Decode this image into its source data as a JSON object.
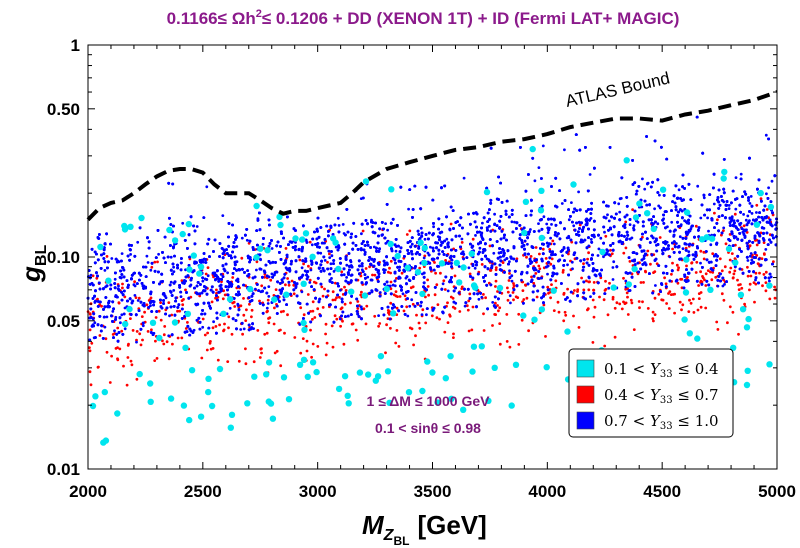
{
  "chart_data": {
    "type": "scatter",
    "title": "0.1166≤ Ωh²≤ 0.1206 + DD (XENON 1T) + ID (Fermi LAT+ MAGIC)",
    "title_parts": {
      "pre": "0.1166≤ Ωh",
      "sup": "2",
      "post": "≤ 0.1206 + DD (XENON 1T) + ID (Fermi LAT+ MAGIC)"
    },
    "xlabel": {
      "main": "M",
      "sub": "Z",
      "subsub": "BL",
      "unit": "[GeV]"
    },
    "ylabel": {
      "main": "g",
      "sub": "BL"
    },
    "xlim": [
      2000,
      5000
    ],
    "ylim": [
      0.01,
      1
    ],
    "yscale": "log",
    "x_ticks": [
      2000,
      2500,
      3000,
      3500,
      4000,
      4500,
      5000
    ],
    "x_tick_labels": [
      "2000",
      "2500",
      "3000",
      "3500",
      "4000",
      "4500",
      "5000"
    ],
    "y_ticks": [
      0.01,
      0.05,
      0.1,
      0.5,
      1
    ],
    "y_tick_labels": [
      "0.01",
      "0.05",
      "0.10",
      "0.50",
      "1"
    ],
    "legend": {
      "position": "lower-right",
      "entries": [
        {
          "label": "0.1 < Y33 ≤ 0.4",
          "pre": "0.1 < ",
          "var": "Y",
          "sub": "33",
          "post": " ≤ 0.4",
          "color": "#00e5ee"
        },
        {
          "label": "0.4 < Y33 ≤ 0.7",
          "pre": "0.4 < ",
          "var": "Y",
          "sub": "33",
          "post": " ≤ 0.7",
          "color": "#ff0000"
        },
        {
          "label": "0.7 < Y33 ≤ 1.0",
          "pre": "0.7 < ",
          "var": "Y",
          "sub": "33",
          "post": " ≤ 1.0",
          "color": "#0000ff"
        }
      ]
    },
    "annotations": {
      "atlas": "ATLAS Bound",
      "delta_m": "1 ≤ ΔM  ≤ 1000 GeV",
      "sin_theta": "0.1 < sinθ ≤ 0.98"
    },
    "atlas_bound": {
      "x": [
        2000,
        2050,
        2100,
        2150,
        2200,
        2250,
        2300,
        2350,
        2400,
        2450,
        2500,
        2550,
        2600,
        2650,
        2700,
        2750,
        2800,
        2850,
        2900,
        2950,
        3000,
        3050,
        3100,
        3150,
        3200,
        3300,
        3400,
        3500,
        3600,
        3700,
        3800,
        3900,
        4000,
        4100,
        4200,
        4300,
        4400,
        4500,
        4600,
        4700,
        4800,
        4900,
        5000
      ],
      "y": [
        0.15,
        0.17,
        0.18,
        0.185,
        0.2,
        0.22,
        0.24,
        0.255,
        0.26,
        0.26,
        0.25,
        0.22,
        0.2,
        0.2,
        0.2,
        0.185,
        0.17,
        0.16,
        0.165,
        0.165,
        0.17,
        0.175,
        0.18,
        0.2,
        0.225,
        0.26,
        0.28,
        0.3,
        0.32,
        0.33,
        0.35,
        0.36,
        0.38,
        0.41,
        0.43,
        0.45,
        0.45,
        0.44,
        0.47,
        0.49,
        0.52,
        0.55,
        0.6
      ]
    },
    "series": [
      {
        "name": "0.1 < Y33 ≤ 0.4",
        "color": "#00e5ee",
        "marker_r": 3.2,
        "n_points": 190
      },
      {
        "name": "0.4 < Y33 ≤ 0.7",
        "color": "#ff0000",
        "marker_r": 1.4,
        "n_points": 900
      },
      {
        "name": "0.7 < Y33 ≤ 1.0",
        "color": "#0000ff",
        "marker_r": 1.4,
        "n_points": 7200
      }
    ]
  }
}
